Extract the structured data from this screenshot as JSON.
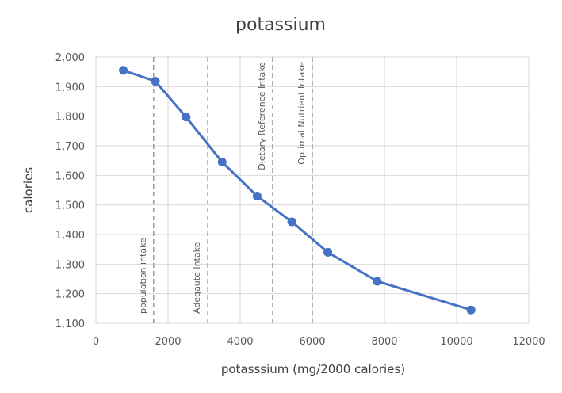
{
  "chart_data": {
    "type": "line",
    "title": "potassium",
    "xlabel": "potasssium (mg/2000 calories)",
    "ylabel": "calories",
    "xlim": [
      0,
      12000
    ],
    "ylim": [
      1100,
      2000
    ],
    "x_ticks": [
      0,
      2000,
      4000,
      6000,
      8000,
      10000,
      12000
    ],
    "x_tick_labels": [
      "0",
      "2000",
      "4000",
      "6000",
      "8000",
      "10000",
      "12000"
    ],
    "y_ticks": [
      1100,
      1200,
      1300,
      1400,
      1500,
      1600,
      1700,
      1800,
      1900,
      2000
    ],
    "y_tick_labels": [
      "1,100",
      "1,200",
      "1,300",
      "1,400",
      "1,500",
      "1,600",
      "1,700",
      "1,800",
      "1,900",
      "2,000"
    ],
    "grid": true,
    "legend": "none",
    "series": [
      {
        "color": "#4472C4",
        "points": [
          {
            "x": 760,
            "y": 1955
          },
          {
            "x": 1650,
            "y": 1918
          },
          {
            "x": 2500,
            "y": 1797
          },
          {
            "x": 3500,
            "y": 1645
          },
          {
            "x": 4470,
            "y": 1530
          },
          {
            "x": 5430,
            "y": 1443
          },
          {
            "x": 6430,
            "y": 1340
          },
          {
            "x": 7800,
            "y": 1242
          },
          {
            "x": 10400,
            "y": 1145
          }
        ]
      }
    ],
    "reference_lines": [
      {
        "x": 1600,
        "label": "population intake",
        "label_position": "bottom"
      },
      {
        "x": 3100,
        "label": "Adeqaute Intake",
        "label_position": "bottom"
      },
      {
        "x": 4900,
        "label": "Dietary Reference Intake",
        "label_position": "top"
      },
      {
        "x": 6000,
        "label": "Optimal Nutrient Intake",
        "label_position": "top"
      }
    ]
  }
}
